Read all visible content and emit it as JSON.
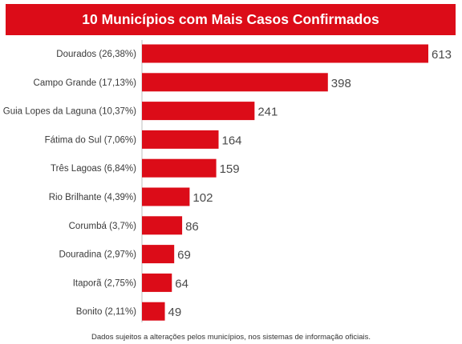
{
  "chart_data": {
    "type": "bar",
    "orientation": "horizontal",
    "title": "10 Municípios com Mais Casos Confirmados",
    "categories": [
      "Dourados (26,38%)",
      "Campo Grande (17,13%)",
      "Guia Lopes da Laguna (10,37%)",
      "Fátima do Sul (7,06%)",
      "Três Lagoas (6,84%)",
      "Rio Brilhante (4,39%)",
      "Corumbá (3,7%)",
      "Douradina (2,97%)",
      "Itaporã (2,75%)",
      "Bonito (2,11%)"
    ],
    "values": [
      613,
      398,
      241,
      164,
      159,
      102,
      86,
      69,
      64,
      49
    ],
    "xlim": [
      0,
      613
    ],
    "grid": false,
    "legend": "none",
    "bar_color": "#dc0c18"
  },
  "footnote": "Dados sujeitos a alterações pelos municípios, nos sistemas de informação oficiais."
}
